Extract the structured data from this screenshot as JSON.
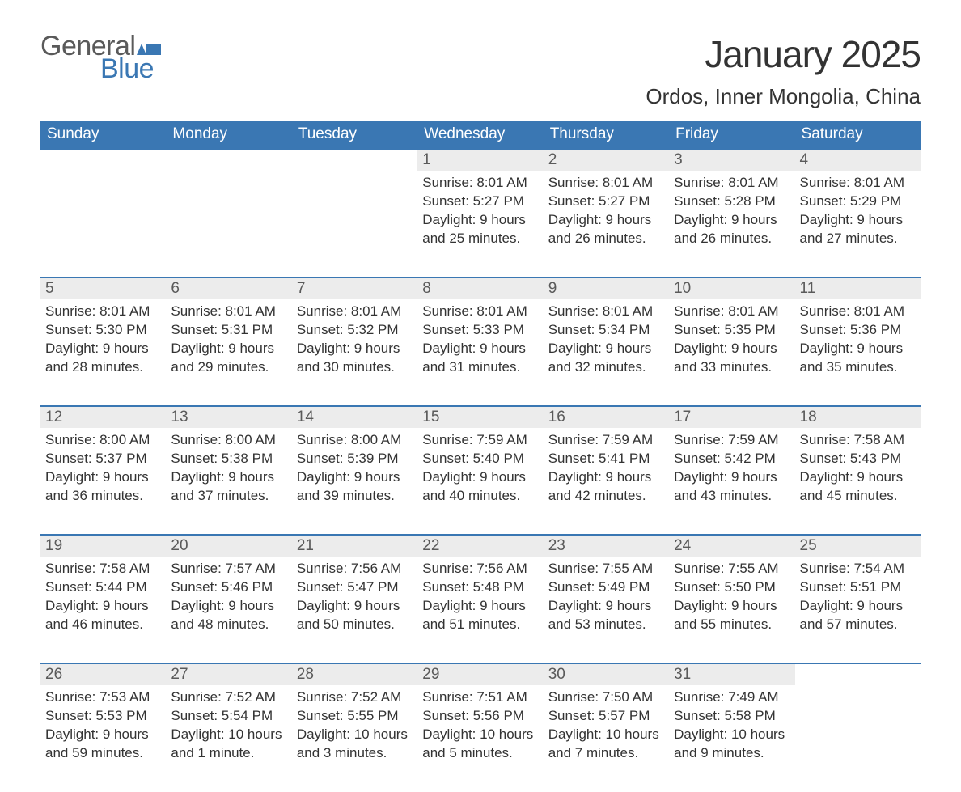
{
  "logo": {
    "word1": "General",
    "word2": "Blue",
    "flag_color": "#3a77b3"
  },
  "title": "January 2025",
  "subtitle": "Ordos, Inner Mongolia, China",
  "colors": {
    "header_bg": "#3a77b3",
    "header_text": "#ffffff",
    "daynum_bg": "#ececec",
    "row_divider": "#3a77b3",
    "body_text": "#333333",
    "muted_text": "#5a5a5a"
  },
  "day_headers": [
    "Sunday",
    "Monday",
    "Tuesday",
    "Wednesday",
    "Thursday",
    "Friday",
    "Saturday"
  ],
  "weeks": [
    [
      null,
      null,
      null,
      {
        "n": "1",
        "sunrise": "8:01 AM",
        "sunset": "5:27 PM",
        "daylight": "9 hours and 25 minutes."
      },
      {
        "n": "2",
        "sunrise": "8:01 AM",
        "sunset": "5:27 PM",
        "daylight": "9 hours and 26 minutes."
      },
      {
        "n": "3",
        "sunrise": "8:01 AM",
        "sunset": "5:28 PM",
        "daylight": "9 hours and 26 minutes."
      },
      {
        "n": "4",
        "sunrise": "8:01 AM",
        "sunset": "5:29 PM",
        "daylight": "9 hours and 27 minutes."
      }
    ],
    [
      {
        "n": "5",
        "sunrise": "8:01 AM",
        "sunset": "5:30 PM",
        "daylight": "9 hours and 28 minutes."
      },
      {
        "n": "6",
        "sunrise": "8:01 AM",
        "sunset": "5:31 PM",
        "daylight": "9 hours and 29 minutes."
      },
      {
        "n": "7",
        "sunrise": "8:01 AM",
        "sunset": "5:32 PM",
        "daylight": "9 hours and 30 minutes."
      },
      {
        "n": "8",
        "sunrise": "8:01 AM",
        "sunset": "5:33 PM",
        "daylight": "9 hours and 31 minutes."
      },
      {
        "n": "9",
        "sunrise": "8:01 AM",
        "sunset": "5:34 PM",
        "daylight": "9 hours and 32 minutes."
      },
      {
        "n": "10",
        "sunrise": "8:01 AM",
        "sunset": "5:35 PM",
        "daylight": "9 hours and 33 minutes."
      },
      {
        "n": "11",
        "sunrise": "8:01 AM",
        "sunset": "5:36 PM",
        "daylight": "9 hours and 35 minutes."
      }
    ],
    [
      {
        "n": "12",
        "sunrise": "8:00 AM",
        "sunset": "5:37 PM",
        "daylight": "9 hours and 36 minutes."
      },
      {
        "n": "13",
        "sunrise": "8:00 AM",
        "sunset": "5:38 PM",
        "daylight": "9 hours and 37 minutes."
      },
      {
        "n": "14",
        "sunrise": "8:00 AM",
        "sunset": "5:39 PM",
        "daylight": "9 hours and 39 minutes."
      },
      {
        "n": "15",
        "sunrise": "7:59 AM",
        "sunset": "5:40 PM",
        "daylight": "9 hours and 40 minutes."
      },
      {
        "n": "16",
        "sunrise": "7:59 AM",
        "sunset": "5:41 PM",
        "daylight": "9 hours and 42 minutes."
      },
      {
        "n": "17",
        "sunrise": "7:59 AM",
        "sunset": "5:42 PM",
        "daylight": "9 hours and 43 minutes."
      },
      {
        "n": "18",
        "sunrise": "7:58 AM",
        "sunset": "5:43 PM",
        "daylight": "9 hours and 45 minutes."
      }
    ],
    [
      {
        "n": "19",
        "sunrise": "7:58 AM",
        "sunset": "5:44 PM",
        "daylight": "9 hours and 46 minutes."
      },
      {
        "n": "20",
        "sunrise": "7:57 AM",
        "sunset": "5:46 PM",
        "daylight": "9 hours and 48 minutes."
      },
      {
        "n": "21",
        "sunrise": "7:56 AM",
        "sunset": "5:47 PM",
        "daylight": "9 hours and 50 minutes."
      },
      {
        "n": "22",
        "sunrise": "7:56 AM",
        "sunset": "5:48 PM",
        "daylight": "9 hours and 51 minutes."
      },
      {
        "n": "23",
        "sunrise": "7:55 AM",
        "sunset": "5:49 PM",
        "daylight": "9 hours and 53 minutes."
      },
      {
        "n": "24",
        "sunrise": "7:55 AM",
        "sunset": "5:50 PM",
        "daylight": "9 hours and 55 minutes."
      },
      {
        "n": "25",
        "sunrise": "7:54 AM",
        "sunset": "5:51 PM",
        "daylight": "9 hours and 57 minutes."
      }
    ],
    [
      {
        "n": "26",
        "sunrise": "7:53 AM",
        "sunset": "5:53 PM",
        "daylight": "9 hours and 59 minutes."
      },
      {
        "n": "27",
        "sunrise": "7:52 AM",
        "sunset": "5:54 PM",
        "daylight": "10 hours and 1 minute."
      },
      {
        "n": "28",
        "sunrise": "7:52 AM",
        "sunset": "5:55 PM",
        "daylight": "10 hours and 3 minutes."
      },
      {
        "n": "29",
        "sunrise": "7:51 AM",
        "sunset": "5:56 PM",
        "daylight": "10 hours and 5 minutes."
      },
      {
        "n": "30",
        "sunrise": "7:50 AM",
        "sunset": "5:57 PM",
        "daylight": "10 hours and 7 minutes."
      },
      {
        "n": "31",
        "sunrise": "7:49 AM",
        "sunset": "5:58 PM",
        "daylight": "10 hours and 9 minutes."
      },
      null
    ]
  ],
  "labels": {
    "sunrise": "Sunrise: ",
    "sunset": "Sunset: ",
    "daylight": "Daylight: "
  }
}
